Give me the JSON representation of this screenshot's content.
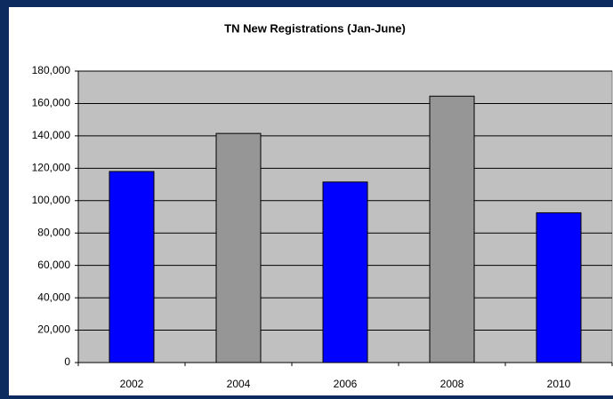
{
  "chart_data": {
    "type": "bar",
    "title": "TN New Registrations (Jan-June)",
    "categories": [
      "2002",
      "2004",
      "2006",
      "2008",
      "2010"
    ],
    "values": [
      118000,
      141500,
      111500,
      164500,
      92500
    ],
    "colors": [
      "#0000ff",
      "#969696",
      "#0000ff",
      "#969696",
      "#0000ff"
    ],
    "ylim": [
      0,
      180000
    ],
    "yticks": [
      0,
      {
        "value": 20000,
        "label": "20,000"
      },
      {
        "value": 40000,
        "label": "40,000"
      },
      {
        "value": 60000,
        "label": "60,000"
      },
      {
        "value": 80000,
        "label": "80,000"
      },
      {
        "value": 100000,
        "label": "100,000"
      },
      {
        "value": 120000,
        "label": "120,000"
      },
      {
        "value": 140000,
        "label": "140,000"
      },
      {
        "value": 160000,
        "label": "160,000"
      },
      {
        "value": 180000,
        "label": "180,000"
      }
    ],
    "grid": true
  }
}
